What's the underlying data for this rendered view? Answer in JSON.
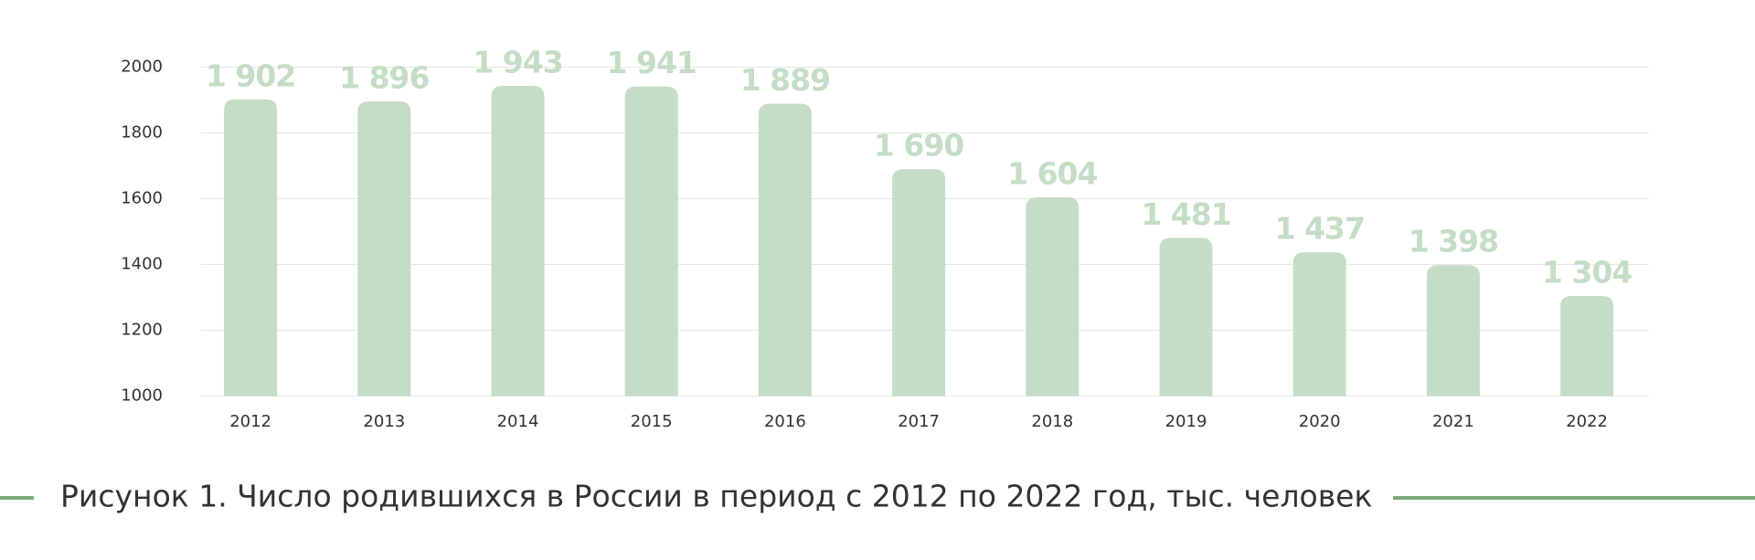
{
  "chart_data": {
    "type": "bar",
    "caption": "Рисунок 1. Число родившихся в России в период с 2012 по 2022 год, тыс. человек",
    "categories": [
      "2012",
      "2013",
      "2014",
      "2015",
      "2016",
      "2017",
      "2018",
      "2019",
      "2020",
      "2021",
      "2022"
    ],
    "values": [
      1902,
      1896,
      1943,
      1941,
      1889,
      1690,
      1604,
      1481,
      1437,
      1398,
      1304
    ],
    "value_labels": [
      "1 902",
      "1 896",
      "1 943",
      "1 941",
      "1 889",
      "1 690",
      "1 604",
      "1 481",
      "1 437",
      "1 398",
      "1 304"
    ],
    "color": "#c5dcc6",
    "ylim": [
      1000,
      2000
    ],
    "yticks": [
      1000,
      1200,
      1400,
      1600,
      1800,
      2000
    ],
    "grid": true
  }
}
